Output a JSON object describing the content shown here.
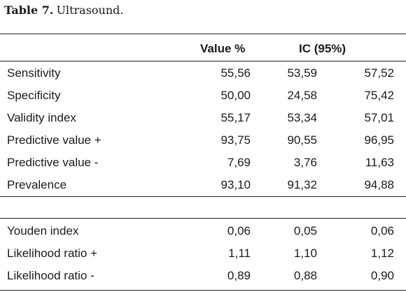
{
  "caption": {
    "label": "Table 7.",
    "title": "Ultrasound."
  },
  "table": {
    "headers": {
      "value": "Value %",
      "ic": "IC (95%)"
    },
    "group1": [
      {
        "label": "Sensitivity",
        "value": "55,56",
        "ic_low": "53,59",
        "ic_high": "57,52"
      },
      {
        "label": "Specificity",
        "value": "50,00",
        "ic_low": "24,58",
        "ic_high": "75,42"
      },
      {
        "label": "Validity index",
        "value": "55,17",
        "ic_low": "53,34",
        "ic_high": "57,01"
      },
      {
        "label": "Predictive value +",
        "value": "93,75",
        "ic_low": "90,55",
        "ic_high": "96,95"
      },
      {
        "label": "Predictive value -",
        "value": "7,69",
        "ic_low": "3,76",
        "ic_high": "11,63"
      },
      {
        "label": "Prevalence",
        "value": "93,10",
        "ic_low": "91,32",
        "ic_high": "94,88"
      }
    ],
    "group2": [
      {
        "label": "Youden index",
        "value": "0,06",
        "ic_low": "0,05",
        "ic_high": "0,06"
      },
      {
        "label": "Likelihood ratio +",
        "value": "1,11",
        "ic_low": "1,10",
        "ic_high": "1,12"
      },
      {
        "label": "Likelihood ratio -",
        "value": "0,89",
        "ic_low": "0,88",
        "ic_high": "0,90"
      }
    ]
  }
}
